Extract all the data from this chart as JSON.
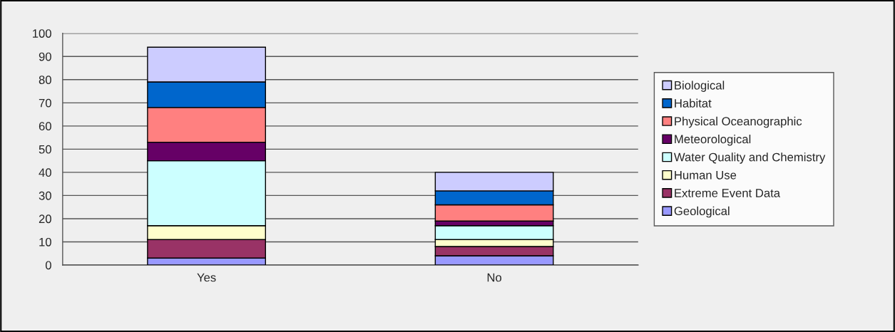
{
  "chart_data": {
    "type": "bar",
    "stacked": true,
    "categories": [
      "Yes",
      "No"
    ],
    "series": [
      {
        "name": "Geological",
        "color": "#9999ff",
        "values": [
          3,
          4
        ]
      },
      {
        "name": "Extreme Event Data",
        "color": "#993366",
        "values": [
          8,
          4
        ]
      },
      {
        "name": "Human Use",
        "color": "#ffffcc",
        "values": [
          6,
          3
        ]
      },
      {
        "name": "Water Quality and Chemistry",
        "color": "#ccffff",
        "values": [
          28,
          6
        ]
      },
      {
        "name": "Meteorological",
        "color": "#660066",
        "values": [
          8,
          2
        ]
      },
      {
        "name": "Physical Oceanographic",
        "color": "#ff8080",
        "values": [
          15,
          7
        ]
      },
      {
        "name": "Habitat",
        "color": "#0066cc",
        "values": [
          11,
          6
        ]
      },
      {
        "name": "Biological",
        "color": "#ccccff",
        "values": [
          15,
          8
        ]
      }
    ],
    "ylim": [
      0,
      100
    ],
    "yticks": [
      0,
      10,
      20,
      30,
      40,
      50,
      60,
      70,
      80,
      90,
      100
    ],
    "grid": "y",
    "legend": "right"
  }
}
